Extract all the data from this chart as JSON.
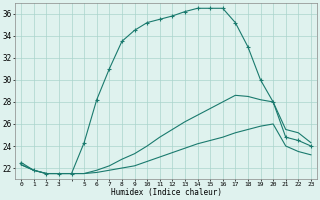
{
  "xlabel": "Humidex (Indice chaleur)",
  "x": [
    0,
    1,
    2,
    3,
    4,
    5,
    6,
    7,
    8,
    9,
    10,
    11,
    12,
    13,
    14,
    15,
    16,
    17,
    18,
    19,
    20,
    21,
    22,
    23
  ],
  "y_main": [
    22.5,
    21.8,
    21.5,
    21.5,
    21.5,
    24.3,
    28.2,
    31.0,
    33.5,
    34.5,
    35.2,
    35.5,
    35.8,
    36.2,
    36.5,
    36.5,
    36.5,
    35.2,
    33.0,
    30.0,
    28.0,
    24.8,
    24.5,
    24.0
  ],
  "y_line2": [
    22.3,
    21.8,
    21.5,
    21.5,
    21.5,
    21.5,
    21.8,
    22.2,
    22.8,
    23.3,
    24.0,
    24.8,
    25.5,
    26.2,
    26.8,
    27.4,
    28.0,
    28.6,
    28.5,
    28.2,
    28.0,
    25.5,
    25.2,
    24.3
  ],
  "y_line3": [
    22.3,
    21.8,
    21.5,
    21.5,
    21.5,
    21.5,
    21.6,
    21.8,
    22.0,
    22.2,
    22.6,
    23.0,
    23.4,
    23.8,
    24.2,
    24.5,
    24.8,
    25.2,
    25.5,
    25.8,
    26.0,
    24.0,
    23.5,
    23.2
  ],
  "line_color": "#1a7a6e",
  "bg_color": "#dff2ee",
  "grid_color": "#aad4cc",
  "ylim": [
    21.0,
    37.0
  ],
  "yticks": [
    22,
    24,
    26,
    28,
    30,
    32,
    34,
    36
  ],
  "xlim": [
    -0.5,
    23.5
  ],
  "xtick_labels": [
    "0",
    "1",
    "2",
    "3",
    "",
    "5",
    "6",
    "7",
    "8",
    "9",
    "10",
    "11",
    "12",
    "13",
    "14",
    "15",
    "16",
    "17",
    "18",
    "19",
    "20",
    "21",
    "22",
    "23"
  ]
}
